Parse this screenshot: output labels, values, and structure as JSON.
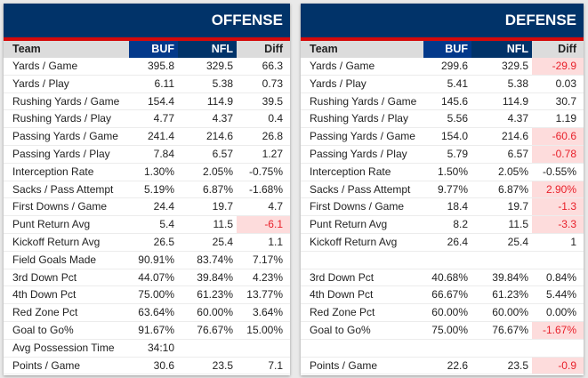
{
  "colors": {
    "header": "#013369",
    "stripe": "#d50a0a",
    "bad_bg": "#fddcdc",
    "bad_text": "#e8202a"
  },
  "offense": {
    "title": "OFFENSE",
    "columns": [
      "Team",
      "BUF",
      "NFL",
      "Diff"
    ],
    "rows": [
      {
        "label": "Yards / Game",
        "buf": "395.8",
        "nfl": "329.5",
        "diff": "66.3"
      },
      {
        "label": "Yards / Play",
        "buf": "6.11",
        "nfl": "5.38",
        "diff": "0.73"
      },
      {
        "label": "Rushing Yards / Game",
        "buf": "154.4",
        "nfl": "114.9",
        "diff": "39.5"
      },
      {
        "label": "Rushing Yards / Play",
        "buf": "4.77",
        "nfl": "4.37",
        "diff": "0.4"
      },
      {
        "label": "Passing Yards / Game",
        "buf": "241.4",
        "nfl": "214.6",
        "diff": "26.8"
      },
      {
        "label": "Passing Yards / Play",
        "buf": "7.84",
        "nfl": "6.57",
        "diff": "1.27"
      },
      {
        "label": "Interception Rate",
        "buf": "1.30%",
        "nfl": "2.05%",
        "diff": "-0.75%"
      },
      {
        "label": "Sacks / Pass Attempt",
        "buf": "5.19%",
        "nfl": "6.87%",
        "diff": "-1.68%"
      },
      {
        "label": "First Downs / Game",
        "buf": "24.4",
        "nfl": "19.7",
        "diff": "4.7"
      },
      {
        "label": "Punt Return Avg",
        "buf": "5.4",
        "nfl": "11.5",
        "diff": "-6.1",
        "bad": true
      },
      {
        "label": "Kickoff Return Avg",
        "buf": "26.5",
        "nfl": "25.4",
        "diff": "1.1"
      },
      {
        "label": "Field Goals Made",
        "buf": "90.91%",
        "nfl": "83.74%",
        "diff": "7.17%"
      },
      {
        "label": "3rd Down Pct",
        "buf": "44.07%",
        "nfl": "39.84%",
        "diff": "4.23%"
      },
      {
        "label": "4th Down Pct",
        "buf": "75.00%",
        "nfl": "61.23%",
        "diff": "13.77%"
      },
      {
        "label": "Red Zone Pct",
        "buf": "63.64%",
        "nfl": "60.00%",
        "diff": "3.64%"
      },
      {
        "label": "Goal to Go%",
        "buf": "91.67%",
        "nfl": "76.67%",
        "diff": "15.00%"
      },
      {
        "label": "Avg Possession Time",
        "buf": "34:10",
        "nfl": "",
        "diff": ""
      },
      {
        "label": "Points / Game",
        "buf": "30.6",
        "nfl": "23.5",
        "diff": "7.1"
      }
    ]
  },
  "defense": {
    "title": "DEFENSE",
    "columns": [
      "Team",
      "BUF",
      "NFL",
      "Diff"
    ],
    "rows": [
      {
        "label": "Yards / Game",
        "buf": "299.6",
        "nfl": "329.5",
        "diff": "-29.9",
        "bad": true
      },
      {
        "label": "Yards / Play",
        "buf": "5.41",
        "nfl": "5.38",
        "diff": "0.03"
      },
      {
        "label": "Rushing Yards / Game",
        "buf": "145.6",
        "nfl": "114.9",
        "diff": "30.7"
      },
      {
        "label": "Rushing Yards / Play",
        "buf": "5.56",
        "nfl": "4.37",
        "diff": "1.19"
      },
      {
        "label": "Passing Yards / Game",
        "buf": "154.0",
        "nfl": "214.6",
        "diff": "-60.6",
        "bad": true
      },
      {
        "label": "Passing Yards / Play",
        "buf": "5.79",
        "nfl": "6.57",
        "diff": "-0.78",
        "bad": true
      },
      {
        "label": "Interception Rate",
        "buf": "1.50%",
        "nfl": "2.05%",
        "diff": "-0.55%"
      },
      {
        "label": "Sacks / Pass Attempt",
        "buf": "9.77%",
        "nfl": "6.87%",
        "diff": "2.90%",
        "bad": true
      },
      {
        "label": "First Downs / Game",
        "buf": "18.4",
        "nfl": "19.7",
        "diff": "-1.3",
        "bad": true
      },
      {
        "label": "Punt Return Avg",
        "buf": "8.2",
        "nfl": "11.5",
        "diff": "-3.3",
        "bad": true
      },
      {
        "label": "Kickoff Return Avg",
        "buf": "26.4",
        "nfl": "25.4",
        "diff": "1"
      },
      {
        "label": "",
        "buf": "",
        "nfl": "",
        "diff": ""
      },
      {
        "label": "3rd Down Pct",
        "buf": "40.68%",
        "nfl": "39.84%",
        "diff": "0.84%"
      },
      {
        "label": "4th Down Pct",
        "buf": "66.67%",
        "nfl": "61.23%",
        "diff": "5.44%"
      },
      {
        "label": "Red Zone Pct",
        "buf": "60.00%",
        "nfl": "60.00%",
        "diff": "0.00%"
      },
      {
        "label": "Goal to Go%",
        "buf": "75.00%",
        "nfl": "76.67%",
        "diff": "-1.67%",
        "bad": true
      },
      {
        "label": "",
        "buf": "",
        "nfl": "",
        "diff": ""
      },
      {
        "label": "Points / Game",
        "buf": "22.6",
        "nfl": "23.5",
        "diff": "-0.9",
        "bad": true
      }
    ]
  }
}
